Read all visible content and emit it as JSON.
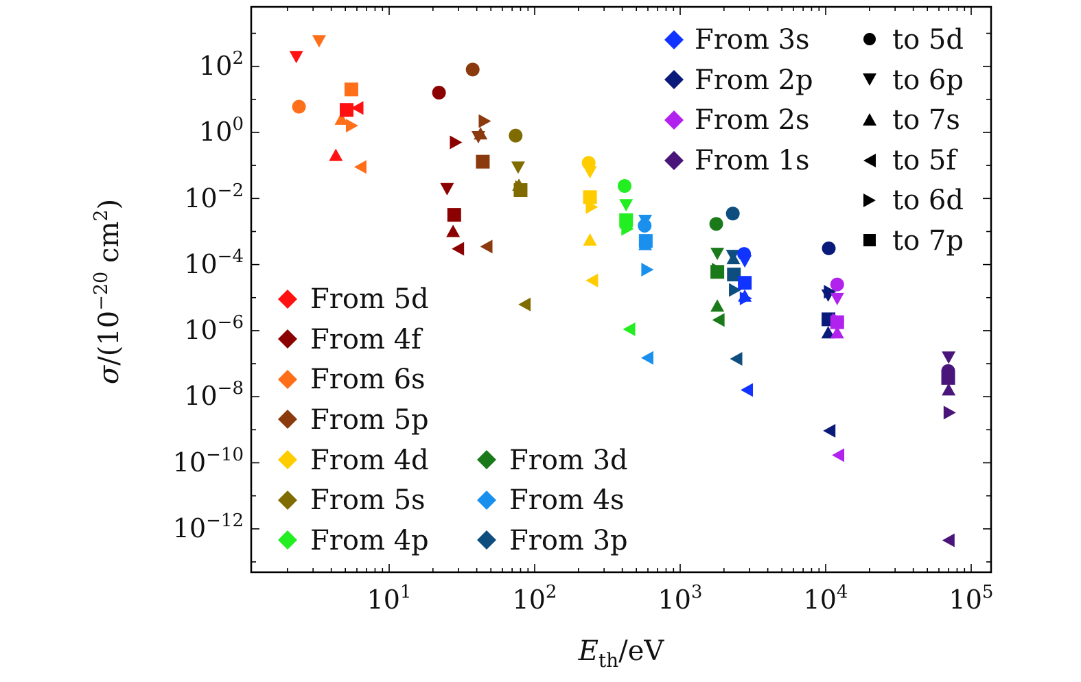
{
  "chart_data": {
    "type": "scatter",
    "xscale": "log",
    "yscale": "log",
    "xlim": [
      1.4,
      120000
    ],
    "ylim": [
      1e-13,
      10000
    ],
    "xlabel": "E_th/eV",
    "xlabel_main": "E",
    "xlabel_sub": "th",
    "xlabel_unit": "/eV",
    "ylabel": "σ/(10⁻²⁰ cm²)",
    "ylabel_parts": {
      "sigma": "σ",
      "open": "/(10",
      "exp": "−20",
      "unit": " cm",
      "unit_exp": "2",
      "close": ")"
    },
    "xticks": [
      {
        "value": 10,
        "base": "10",
        "exp": "1"
      },
      {
        "value": 100,
        "base": "10",
        "exp": "2"
      },
      {
        "value": 1000,
        "base": "10",
        "exp": "3"
      },
      {
        "value": 10000,
        "base": "10",
        "exp": "4"
      },
      {
        "value": 100000,
        "base": "10",
        "exp": "5"
      }
    ],
    "yticks": [
      {
        "value": 100,
        "base": "10",
        "exp": "2"
      },
      {
        "value": 1,
        "base": "10",
        "exp": "0"
      },
      {
        "value": 0.01,
        "base": "10",
        "exp": "−2"
      },
      {
        "value": 0.0001,
        "base": "10",
        "exp": "−4"
      },
      {
        "value": 1e-06,
        "base": "10",
        "exp": "−6"
      },
      {
        "value": 1e-08,
        "base": "10",
        "exp": "−8"
      },
      {
        "value": 1e-10,
        "base": "10",
        "exp": "−10"
      },
      {
        "value": 1e-12,
        "base": "10",
        "exp": "−12"
      }
    ],
    "grid": false,
    "legends": {
      "from_states_top_right": [
        "From 3s",
        "From 2p",
        "From 2s",
        "From 1s"
      ],
      "to_states_top_right": [
        "to 5d",
        "to 6p",
        "to 7s",
        "to 5f",
        "to 6d",
        "to 7p"
      ],
      "from_states_bottom_left_col1": [
        "From 5d",
        "From 4f",
        "From 6s",
        "From 5p",
        "From 4d",
        "From 5s",
        "From 4p"
      ],
      "from_states_bottom_left_col2": [
        "From 3d",
        "From 4s",
        "From 3p"
      ]
    },
    "marker_shapes": {
      "to 5d": "circle",
      "to 6p": "triangle-down",
      "to 7s": "triangle-up",
      "to 5f": "triangle-left",
      "to 6d": "triangle-right",
      "to 7p": "square",
      "legend": "diamond"
    },
    "series": [
      {
        "name": "From 6s",
        "color": "#ff6f1a",
        "points": [
          {
            "to": "to 5d",
            "x": 2.4,
            "y": 6
          },
          {
            "to": "to 6p",
            "x": 3.3,
            "y": 600
          },
          {
            "to": "to 7s",
            "x": 4.7,
            "y": 2.5
          },
          {
            "to": "to 5f",
            "x": 6.4,
            "y": 0.09
          },
          {
            "to": "to 6d",
            "x": 5.5,
            "y": 1.6
          },
          {
            "to": "to 7p",
            "x": 5.5,
            "y": 20
          }
        ]
      },
      {
        "name": "From 5d",
        "color": "#ff1111",
        "points": [
          {
            "to": "to 6p",
            "x": 2.3,
            "y": 200
          },
          {
            "to": "to 7s",
            "x": 4.3,
            "y": 0.2
          },
          {
            "to": "to 5f",
            "x": 6.1,
            "y": 5.5
          },
          {
            "to": "to 7p",
            "x": 5.1,
            "y": 4.8
          }
        ]
      },
      {
        "name": "From 4f",
        "color": "#8b0000",
        "points": [
          {
            "to": "to 5d",
            "x": 22,
            "y": 16
          },
          {
            "to": "to 6p",
            "x": 25,
            "y": 0.02
          },
          {
            "to": "to 7s",
            "x": 27.5,
            "y": 0.001
          },
          {
            "to": "to 5f",
            "x": 30,
            "y": 0.0003
          },
          {
            "to": "to 6d",
            "x": 28.5,
            "y": 0.5
          },
          {
            "to": "to 7p",
            "x": 28,
            "y": 0.0032
          }
        ]
      },
      {
        "name": "From 5p",
        "color": "#8b3a0e",
        "points": [
          {
            "to": "to 5d",
            "x": 37.5,
            "y": 80
          },
          {
            "to": "to 6p",
            "x": 41,
            "y": 0.75
          },
          {
            "to": "to 7s",
            "x": 42.5,
            "y": 0.9
          },
          {
            "to": "to 5f",
            "x": 47,
            "y": 0.00035
          },
          {
            "to": "to 6d",
            "x": 45,
            "y": 2.2
          },
          {
            "to": "to 7p",
            "x": 44,
            "y": 0.13
          }
        ]
      },
      {
        "name": "From 5s",
        "color": "#7f6b00",
        "points": [
          {
            "to": "to 5d",
            "x": 74,
            "y": 0.8
          },
          {
            "to": "to 6p",
            "x": 77,
            "y": 0.09
          },
          {
            "to": "to 7s",
            "x": 78,
            "y": 0.025
          },
          {
            "to": "to 5f",
            "x": 86,
            "y": 6.2e-06
          },
          {
            "to": "to 6d",
            "x": 80,
            "y": 0.022
          },
          {
            "to": "to 7p",
            "x": 80,
            "y": 0.018
          }
        ]
      },
      {
        "name": "From 4d",
        "color": "#ffcc00",
        "points": [
          {
            "to": "to 5d",
            "x": 235,
            "y": 0.12
          },
          {
            "to": "to 6p",
            "x": 240,
            "y": 0.065
          },
          {
            "to": "to 7s",
            "x": 240,
            "y": 0.00055
          },
          {
            "to": "to 5f",
            "x": 250,
            "y": 3.3e-05
          },
          {
            "to": "to 6d",
            "x": 245,
            "y": 0.0055
          },
          {
            "to": "to 7p",
            "x": 240,
            "y": 0.011
          }
        ]
      },
      {
        "name": "From 4p",
        "color": "#22ee22",
        "points": [
          {
            "to": "to 5d",
            "x": 415,
            "y": 0.024
          },
          {
            "to": "to 6p",
            "x": 425,
            "y": 0.0065
          },
          {
            "to": "to 7s",
            "x": 425,
            "y": 0.0018
          },
          {
            "to": "to 5f",
            "x": 450,
            "y": 1.1e-06
          },
          {
            "to": "to 6d",
            "x": 430,
            "y": 0.0012
          },
          {
            "to": "to 7p",
            "x": 425,
            "y": 0.0022
          }
        ]
      },
      {
        "name": "From 4s",
        "color": "#1a90ee",
        "points": [
          {
            "to": "to 5d",
            "x": 570,
            "y": 0.0015
          },
          {
            "to": "to 6p",
            "x": 575,
            "y": 0.0022
          },
          {
            "to": "to 7s",
            "x": 575,
            "y": 0.0004
          },
          {
            "to": "to 5f",
            "x": 600,
            "y": 1.5e-07
          },
          {
            "to": "to 6d",
            "x": 590,
            "y": 7e-05
          },
          {
            "to": "to 7p",
            "x": 580,
            "y": 0.00052
          }
        ]
      },
      {
        "name": "From 3d",
        "color": "#1a7a1a",
        "points": [
          {
            "to": "to 5d",
            "x": 1770,
            "y": 0.0017
          },
          {
            "to": "to 6p",
            "x": 1800,
            "y": 0.00022
          },
          {
            "to": "to 7s",
            "x": 1800,
            "y": 5.5e-06
          },
          {
            "to": "to 5f",
            "x": 1850,
            "y": 2.1e-06
          },
          {
            "to": "to 6d",
            "x": 1800,
            "y": 7e-05
          },
          {
            "to": "to 7p",
            "x": 1800,
            "y": 6e-05
          }
        ]
      },
      {
        "name": "From 3p",
        "color": "#0e4e7e",
        "points": [
          {
            "to": "to 5d",
            "x": 2300,
            "y": 0.0035
          },
          {
            "to": "to 6p",
            "x": 2300,
            "y": 0.00019
          },
          {
            "to": "to 7s",
            "x": 2320,
            "y": 0.00015
          },
          {
            "to": "to 5f",
            "x": 2450,
            "y": 1.4e-07
          },
          {
            "to": "to 6d",
            "x": 2360,
            "y": 1.7e-05
          },
          {
            "to": "to 7p",
            "x": 2340,
            "y": 5e-05
          }
        ]
      },
      {
        "name": "From 3s",
        "color": "#1133ff",
        "points": [
          {
            "to": "to 5d",
            "x": 2750,
            "y": 0.00021
          },
          {
            "to": "to 6p",
            "x": 2780,
            "y": 0.00013
          },
          {
            "to": "to 7s",
            "x": 2780,
            "y": 1.1e-05
          },
          {
            "to": "to 5f",
            "x": 2900,
            "y": 1.6e-08
          },
          {
            "to": "to 6d",
            "x": 2800,
            "y": 9.5e-06
          },
          {
            "to": "to 7p",
            "x": 2780,
            "y": 2.8e-05
          }
        ]
      },
      {
        "name": "From 2p",
        "color": "#0a1a7a",
        "points": [
          {
            "to": "to 5d",
            "x": 10500,
            "y": 0.00031
          },
          {
            "to": "to 6p",
            "x": 10400,
            "y": 1.2e-05
          },
          {
            "to": "to 7s",
            "x": 10400,
            "y": 8.5e-07
          },
          {
            "to": "to 5f",
            "x": 10700,
            "y": 9.3e-10
          },
          {
            "to": "to 6d",
            "x": 10600,
            "y": 1.5e-05
          },
          {
            "to": "to 7p",
            "x": 10450,
            "y": 2.2e-06
          }
        ]
      },
      {
        "name": "From 2s",
        "color": "#b222ee",
        "points": [
          {
            "to": "to 5d",
            "x": 12000,
            "y": 2.5e-05
          },
          {
            "to": "to 6p",
            "x": 12000,
            "y": 9.5e-06
          },
          {
            "to": "to 7s",
            "x": 12000,
            "y": 8.5e-07
          },
          {
            "to": "to 5f",
            "x": 12300,
            "y": 1.7e-10
          },
          {
            "to": "to 6d",
            "x": 12100,
            "y": 2.1e-06
          },
          {
            "to": "to 7p",
            "x": 12000,
            "y": 1.8e-06
          }
        ]
      },
      {
        "name": "From 1s",
        "color": "#4a157a",
        "points": [
          {
            "to": "to 5d",
            "x": 69500,
            "y": 6e-08
          },
          {
            "to": "to 6p",
            "x": 70000,
            "y": 1.6e-07
          },
          {
            "to": "to 7s",
            "x": 70000,
            "y": 1.6e-08
          },
          {
            "to": "to 5f",
            "x": 70500,
            "y": 4.5e-13
          },
          {
            "to": "to 6d",
            "x": 70500,
            "y": 3.3e-09
          },
          {
            "to": "to 7p",
            "x": 69500,
            "y": 3.7e-08
          }
        ]
      }
    ]
  }
}
